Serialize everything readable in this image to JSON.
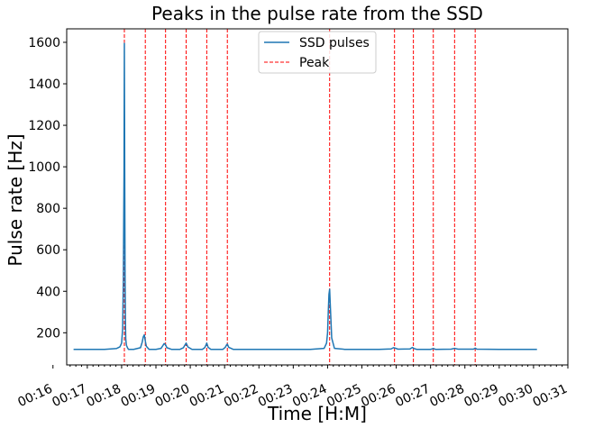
{
  "chart_data": {
    "type": "line",
    "title": "Peaks in the pulse rate from the SSD",
    "xlabel": "Time [H:M]",
    "ylabel": "Pulse rate [Hz]",
    "x_unit": "minutes after 00:00",
    "xlim": [
      16.4,
      31.0
    ],
    "ylim": [
      45,
      1665
    ],
    "x_ticks": [
      "00:16",
      "00:17",
      "00:18",
      "00:19",
      "00:20",
      "00:21",
      "00:22",
      "00:23",
      "00:24",
      "00:25",
      "00:26",
      "00:27",
      "00:28",
      "00:29",
      "00:30",
      "00:31"
    ],
    "y_ticks": [
      200,
      400,
      600,
      800,
      1000,
      1200,
      1400,
      1600
    ],
    "grid": false,
    "legend_position": "top-center",
    "series": [
      {
        "name": "SSD pulses",
        "color": "#1f77b4",
        "x": [
          16.6,
          17.5,
          17.85,
          17.95,
          18.0,
          18.03,
          18.05,
          18.07,
          18.08,
          18.09,
          18.1,
          18.11,
          18.12,
          18.14,
          18.17,
          18.2,
          18.35,
          18.55,
          18.6,
          18.63,
          18.66,
          18.69,
          18.72,
          18.8,
          19.0,
          19.15,
          19.2,
          19.24,
          19.28,
          19.32,
          19.45,
          19.7,
          19.8,
          19.85,
          19.88,
          19.93,
          20.05,
          20.35,
          20.42,
          20.46,
          20.48,
          20.52,
          20.6,
          20.95,
          21.02,
          21.06,
          21.08,
          21.12,
          21.25,
          22.5,
          23.5,
          23.9,
          23.97,
          24.0,
          24.02,
          24.04,
          24.06,
          24.08,
          24.12,
          24.2,
          24.5,
          25.5,
          25.85,
          25.92,
          25.97,
          26.05,
          26.4,
          26.47,
          26.52,
          26.6,
          27.0,
          27.08,
          27.15,
          27.6,
          27.7,
          27.8,
          28.25,
          28.3,
          28.35,
          29.0,
          30.1
        ],
        "y": [
          120,
          120,
          124,
          132,
          150,
          220,
          450,
          970,
          1595,
          980,
          480,
          260,
          170,
          140,
          128,
          120,
          120,
          128,
          155,
          180,
          190,
          160,
          135,
          120,
          120,
          125,
          138,
          148,
          142,
          128,
          120,
          120,
          128,
          142,
          150,
          132,
          120,
          120,
          128,
          142,
          150,
          130,
          120,
          120,
          130,
          142,
          145,
          130,
          120,
          120,
          120,
          125,
          150,
          200,
          300,
          385,
          410,
          330,
          175,
          125,
          120,
          120,
          122,
          128,
          126,
          121,
          122,
          129,
          124,
          120,
          120,
          124,
          120,
          121,
          125,
          121,
          121,
          126,
          121,
          120,
          120
        ]
      },
      {
        "name": "Peak",
        "color": "#ff0000",
        "style": "dashed",
        "peak_times": [
          18.08,
          18.69,
          19.28,
          19.88,
          20.48,
          21.08,
          24.06,
          25.95,
          26.5,
          27.08,
          27.7,
          28.3
        ]
      }
    ]
  }
}
